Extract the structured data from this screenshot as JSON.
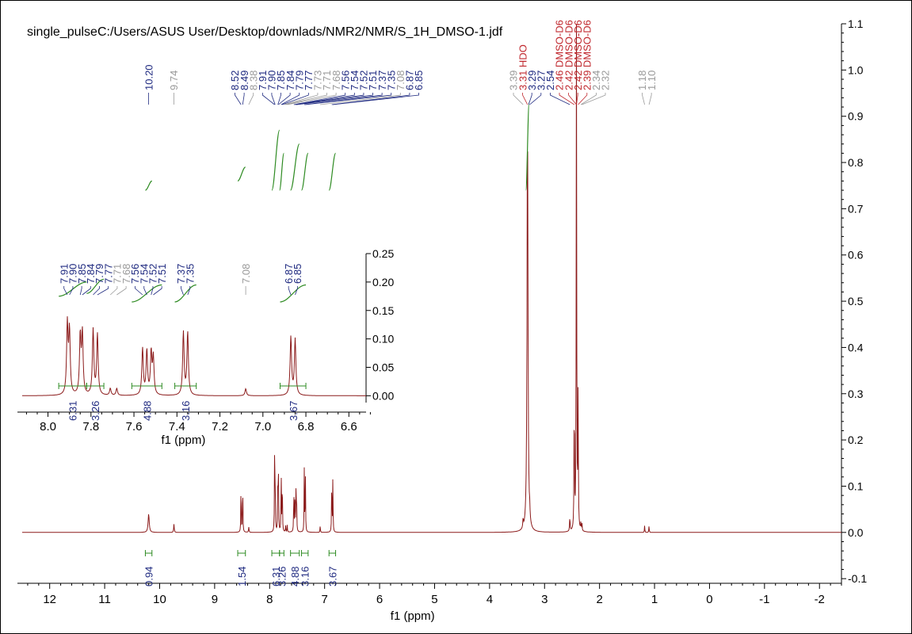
{
  "title": "single_pulseC:/Users/ASUS User/Desktop/downlads/NMR2/NMR/S_1H_DMSO-1.jdf",
  "chart_data": [
    {
      "type": "line",
      "title": "single_pulseC:/Users/ASUS User/Desktop/downlads/NMR2/NMR/S_1H_DMSO-1.jdf",
      "xlabel": "f1 (ppm)",
      "ylabel": "",
      "x_reversed": true,
      "xlim": [
        12.5,
        -2.4
      ],
      "ylim": [
        -0.11,
        1.1
      ],
      "x_ticks": [
        "12",
        "11",
        "10",
        "9",
        "8",
        "7",
        "6",
        "5",
        "4",
        "3",
        "2",
        "1",
        "0",
        "-1",
        "-2"
      ],
      "y_ticks": [
        "-0.1",
        "0.0",
        "0.1",
        "0.2",
        "0.3",
        "0.4",
        "0.5",
        "0.6",
        "0.7",
        "0.8",
        "0.9",
        "1.0",
        "1.1"
      ],
      "colors": {
        "spectrum": "#8b1a1a",
        "integral": "#2e8b22",
        "peak_label": "#1f2a80",
        "solvent_label": "#c0272d",
        "minor_label": "#9a9a9a"
      },
      "peaks": [
        {
          "x": 10.2,
          "y": 0.04,
          "w": 0.012
        },
        {
          "x": 9.74,
          "y": 0.018,
          "w": 0.006
        },
        {
          "x": 8.52,
          "y": 0.115,
          "w": 0.004
        },
        {
          "x": 8.49,
          "y": 0.12,
          "w": 0.004
        },
        {
          "x": 8.38,
          "y": 0.012,
          "w": 0.005
        },
        {
          "x": 7.91,
          "y": 0.15,
          "w": 0.004
        },
        {
          "x": 7.9,
          "y": 0.135,
          "w": 0.004
        },
        {
          "x": 7.85,
          "y": 0.125,
          "w": 0.004
        },
        {
          "x": 7.84,
          "y": 0.13,
          "w": 0.004
        },
        {
          "x": 7.79,
          "y": 0.14,
          "w": 0.004
        },
        {
          "x": 7.77,
          "y": 0.13,
          "w": 0.004
        },
        {
          "x": 7.71,
          "y": 0.015,
          "w": 0.004
        },
        {
          "x": 7.68,
          "y": 0.015,
          "w": 0.004
        },
        {
          "x": 7.56,
          "y": 0.1,
          "w": 0.004
        },
        {
          "x": 7.54,
          "y": 0.095,
          "w": 0.004
        },
        {
          "x": 7.52,
          "y": 0.09,
          "w": 0.004
        },
        {
          "x": 7.51,
          "y": 0.08,
          "w": 0.004
        },
        {
          "x": 7.37,
          "y": 0.135,
          "w": 0.004
        },
        {
          "x": 7.35,
          "y": 0.135,
          "w": 0.004
        },
        {
          "x": 7.08,
          "y": 0.015,
          "w": 0.004
        },
        {
          "x": 6.87,
          "y": 0.125,
          "w": 0.004
        },
        {
          "x": 6.85,
          "y": 0.12,
          "w": 0.004
        },
        {
          "x": 3.31,
          "y": 0.93,
          "w": 0.01
        },
        {
          "x": 3.39,
          "y": 0.02,
          "w": 0.006
        },
        {
          "x": 3.27,
          "y": 0.02,
          "w": 0.006
        },
        {
          "x": 2.54,
          "y": 0.03,
          "w": 0.006
        },
        {
          "x": 2.46,
          "y": 0.3,
          "w": 0.005
        },
        {
          "x": 2.42,
          "y": 1.1,
          "w": 0.005
        },
        {
          "x": 2.39,
          "y": 0.3,
          "w": 0.005
        },
        {
          "x": 2.34,
          "y": 0.015,
          "w": 0.005
        },
        {
          "x": 2.32,
          "y": 0.015,
          "w": 0.005
        },
        {
          "x": 1.18,
          "y": 0.015,
          "w": 0.004
        },
        {
          "x": 1.1,
          "y": 0.015,
          "w": 0.004
        }
      ],
      "peak_labels": [
        {
          "text": "10.20",
          "ppm": 10.2,
          "kind": "main"
        },
        {
          "text": "9.74",
          "ppm": 9.74,
          "kind": "minor"
        },
        {
          "text": "8.52",
          "ppm": 8.52,
          "kind": "main"
        },
        {
          "text": "8.49",
          "ppm": 8.49,
          "kind": "main"
        },
        {
          "text": "8.38",
          "ppm": 8.38,
          "kind": "minor"
        },
        {
          "text": "7.91",
          "ppm": 7.91,
          "kind": "main"
        },
        {
          "text": "7.90",
          "ppm": 7.9,
          "kind": "main"
        },
        {
          "text": "7.85",
          "ppm": 7.85,
          "kind": "main"
        },
        {
          "text": "7.84",
          "ppm": 7.84,
          "kind": "main"
        },
        {
          "text": "7.79",
          "ppm": 7.79,
          "kind": "main"
        },
        {
          "text": "7.77",
          "ppm": 7.77,
          "kind": "main"
        },
        {
          "text": "7.73",
          "ppm": 7.73,
          "kind": "minor"
        },
        {
          "text": "7.71",
          "ppm": 7.71,
          "kind": "minor"
        },
        {
          "text": "7.68",
          "ppm": 7.68,
          "kind": "minor"
        },
        {
          "text": "7.56",
          "ppm": 7.56,
          "kind": "main"
        },
        {
          "text": "7.54",
          "ppm": 7.54,
          "kind": "main"
        },
        {
          "text": "7.52",
          "ppm": 7.52,
          "kind": "main"
        },
        {
          "text": "7.51",
          "ppm": 7.51,
          "kind": "main"
        },
        {
          "text": "7.37",
          "ppm": 7.37,
          "kind": "main"
        },
        {
          "text": "7.35",
          "ppm": 7.35,
          "kind": "main"
        },
        {
          "text": "7.08",
          "ppm": 7.08,
          "kind": "minor"
        },
        {
          "text": "6.87",
          "ppm": 6.87,
          "kind": "main"
        },
        {
          "text": "6.85",
          "ppm": 6.85,
          "kind": "main"
        },
        {
          "text": "3.39",
          "ppm": 3.39,
          "kind": "minor"
        },
        {
          "text": "3.31 HDO",
          "ppm": 3.31,
          "kind": "solvent"
        },
        {
          "text": "3.29",
          "ppm": 3.29,
          "kind": "main"
        },
        {
          "text": "3.27",
          "ppm": 3.27,
          "kind": "main"
        },
        {
          "text": "2.54",
          "ppm": 2.54,
          "kind": "main"
        },
        {
          "text": "2.46 DMSO-D6",
          "ppm": 2.46,
          "kind": "solvent"
        },
        {
          "text": "2.42 DMSO-D6",
          "ppm": 2.42,
          "kind": "solvent"
        },
        {
          "text": "2.42 DMSO-D6",
          "ppm": 2.42,
          "kind": "solvent"
        },
        {
          "text": "2.39 DMSO-D6",
          "ppm": 2.39,
          "kind": "solvent"
        },
        {
          "text": "2.34",
          "ppm": 2.34,
          "kind": "minor"
        },
        {
          "text": "2.32",
          "ppm": 2.32,
          "kind": "minor"
        },
        {
          "text": "1.18",
          "ppm": 1.18,
          "kind": "minor"
        },
        {
          "text": "1.10",
          "ppm": 1.1,
          "kind": "minor"
        }
      ],
      "integrals": [
        {
          "from": 10.26,
          "to": 10.14,
          "value": "0.94",
          "curve_top": 0.76,
          "curve_bottom": 0.74
        },
        {
          "from": 8.58,
          "to": 8.44,
          "value": "1.54",
          "curve_top": 0.79,
          "curve_bottom": 0.76
        },
        {
          "from": 7.96,
          "to": 7.82,
          "value": "6.31",
          "curve_top": 0.87,
          "curve_bottom": 0.74
        },
        {
          "from": 7.82,
          "to": 7.74,
          "value": "3.26",
          "curve_top": 0.82,
          "curve_bottom": 0.74
        },
        {
          "from": 7.62,
          "to": 7.46,
          "value": "4.88",
          "curve_top": 0.84,
          "curve_bottom": 0.74
        },
        {
          "from": 7.42,
          "to": 7.3,
          "value": "3.16",
          "curve_top": 0.82,
          "curve_bottom": 0.74
        },
        {
          "from": 6.92,
          "to": 6.8,
          "value": "3.67",
          "curve_top": 0.82,
          "curve_bottom": 0.74
        },
        {
          "from": 3.34,
          "to": 3.28,
          "value": "",
          "curve_top": 0.93,
          "curve_bottom": 0.74
        }
      ]
    },
    {
      "type": "line",
      "title": "",
      "xlabel": "f1 (ppm)",
      "ylabel": "",
      "x_reversed": true,
      "xlim": [
        8.12,
        6.52
      ],
      "ylim": [
        -0.012,
        0.25
      ],
      "x_ticks": [
        "8.0",
        "7.8",
        "7.6",
        "7.4",
        "7.2",
        "7.0",
        "6.8",
        "6.6"
      ],
      "y_ticks": [
        "0.00",
        "0.05",
        "0.10",
        "0.15",
        "0.20",
        "0.25"
      ],
      "peak_labels": [
        {
          "text": "7.91",
          "ppm": 7.91,
          "kind": "main"
        },
        {
          "text": "7.90",
          "ppm": 7.9,
          "kind": "main"
        },
        {
          "text": "7.85",
          "ppm": 7.85,
          "kind": "main"
        },
        {
          "text": "7.84",
          "ppm": 7.84,
          "kind": "main"
        },
        {
          "text": "7.79",
          "ppm": 7.79,
          "kind": "main"
        },
        {
          "text": "7.77",
          "ppm": 7.77,
          "kind": "main"
        },
        {
          "text": "7.71",
          "ppm": 7.71,
          "kind": "minor"
        },
        {
          "text": "7.68",
          "ppm": 7.68,
          "kind": "minor"
        },
        {
          "text": "7.56",
          "ppm": 7.56,
          "kind": "main"
        },
        {
          "text": "7.54",
          "ppm": 7.54,
          "kind": "main"
        },
        {
          "text": "7.52",
          "ppm": 7.52,
          "kind": "main"
        },
        {
          "text": "7.51",
          "ppm": 7.51,
          "kind": "main"
        },
        {
          "text": "7.37",
          "ppm": 7.37,
          "kind": "main"
        },
        {
          "text": "7.35",
          "ppm": 7.35,
          "kind": "main"
        },
        {
          "text": "7.08",
          "ppm": 7.08,
          "kind": "minor"
        },
        {
          "text": "6.87",
          "ppm": 6.87,
          "kind": "main"
        },
        {
          "text": "6.85",
          "ppm": 6.85,
          "kind": "main"
        }
      ],
      "integrals": [
        {
          "from": 7.95,
          "to": 7.82,
          "value": "6.31",
          "curve_top": 0.2,
          "curve_bottom": 0.175
        },
        {
          "from": 7.82,
          "to": 7.74,
          "value": "3.26",
          "curve_top": 0.205,
          "curve_bottom": 0.18
        },
        {
          "from": 7.61,
          "to": 7.47,
          "value": "4.88",
          "curve_top": 0.195,
          "curve_bottom": 0.165
        },
        {
          "from": 7.41,
          "to": 7.31,
          "value": "3.16",
          "curve_top": 0.195,
          "curve_bottom": 0.165
        },
        {
          "from": 6.92,
          "to": 6.8,
          "value": "3.67",
          "curve_top": 0.195,
          "curve_bottom": 0.165
        }
      ]
    }
  ]
}
